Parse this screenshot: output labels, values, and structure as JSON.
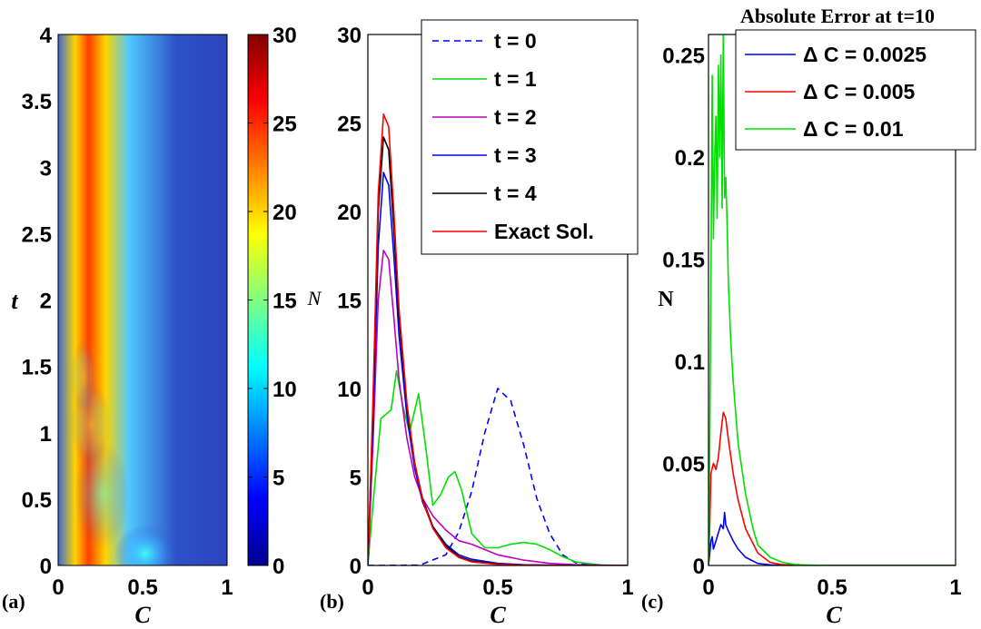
{
  "chart_data": [
    {
      "type": "heatmap",
      "panel_label": "(a)",
      "xlabel": "C",
      "ylabel": "t",
      "xlim": [
        0,
        1
      ],
      "ylim": [
        0,
        4
      ],
      "x_ticks": [
        "0",
        "0.5",
        "1"
      ],
      "y_ticks": [
        "0",
        "0.5",
        "1",
        "1.5",
        "2",
        "2.5",
        "3",
        "3.5",
        "4"
      ],
      "colorbar": {
        "range": [
          0,
          30
        ],
        "ticks": [
          "0",
          "5",
          "10",
          "15",
          "20",
          "25",
          "30"
        ]
      },
      "colors": {
        "low": "#2a3db3",
        "high": "#7f0000"
      }
    },
    {
      "type": "line",
      "panel_label": "(b)",
      "xlabel": "C",
      "ylabel": "N",
      "xlim": [
        0,
        1
      ],
      "ylim": [
        0,
        30
      ],
      "x_ticks": [
        "0",
        "0.5",
        "1"
      ],
      "y_ticks": [
        "0",
        "5",
        "10",
        "15",
        "20",
        "25",
        "30"
      ],
      "legend_position": "top-right",
      "series": [
        {
          "name": "t = 0",
          "color": "#0000ff",
          "dashed": true,
          "x": [
            0,
            0.2,
            0.3,
            0.35,
            0.4,
            0.45,
            0.5,
            0.55,
            0.6,
            0.65,
            0.7,
            0.75,
            0.8,
            0.9,
            1.0
          ],
          "y": [
            0,
            0.02,
            0.6,
            1.9,
            4.2,
            7.5,
            10.0,
            9.3,
            6.8,
            3.8,
            1.8,
            0.6,
            0.15,
            0.0,
            0.0
          ]
        },
        {
          "name": "t = 1",
          "color": "#00e000",
          "dashed": false,
          "x": [
            0,
            0.02,
            0.05,
            0.075,
            0.09,
            0.11,
            0.135,
            0.16,
            0.195,
            0.22,
            0.25,
            0.28,
            0.31,
            0.335,
            0.36,
            0.4,
            0.45,
            0.5,
            0.55,
            0.6,
            0.65,
            0.7,
            0.75,
            0.8,
            0.9,
            1.0
          ],
          "y": [
            0,
            3.5,
            8.3,
            8.6,
            8.8,
            11.0,
            9.0,
            7.5,
            9.7,
            7.0,
            3.4,
            4.0,
            5.0,
            5.3,
            4.3,
            1.8,
            1.0,
            1.0,
            1.2,
            1.3,
            1.2,
            0.9,
            0.5,
            0.2,
            0.02,
            0
          ]
        },
        {
          "name": "t = 2",
          "color": "#bf00bf",
          "dashed": false,
          "x": [
            0,
            0.02,
            0.04,
            0.06,
            0.08,
            0.1,
            0.12,
            0.15,
            0.18,
            0.21,
            0.25,
            0.3,
            0.35,
            0.4,
            0.45,
            0.5,
            0.6,
            0.7,
            0.8,
            1.0
          ],
          "y": [
            0,
            7.0,
            15.0,
            17.8,
            17.3,
            14.0,
            10.5,
            7.2,
            5.0,
            3.8,
            2.8,
            2.0,
            1.4,
            1.2,
            0.9,
            0.6,
            0.3,
            0.12,
            0.04,
            0
          ]
        },
        {
          "name": "t = 3",
          "color": "#0000ff",
          "dashed": false,
          "x": [
            0,
            0.02,
            0.04,
            0.06,
            0.08,
            0.1,
            0.12,
            0.15,
            0.18,
            0.21,
            0.25,
            0.3,
            0.35,
            0.4,
            0.5,
            0.6,
            0.8,
            1.0
          ],
          "y": [
            0,
            8.0,
            18.0,
            22.2,
            21.5,
            17.5,
            13.0,
            8.5,
            5.5,
            3.6,
            2.2,
            1.2,
            0.6,
            0.35,
            0.12,
            0.04,
            0,
            0
          ]
        },
        {
          "name": "t = 4",
          "color": "#000000",
          "dashed": false,
          "x": [
            0,
            0.02,
            0.04,
            0.06,
            0.08,
            0.1,
            0.12,
            0.15,
            0.18,
            0.21,
            0.25,
            0.3,
            0.35,
            0.4,
            0.5,
            0.6,
            0.8,
            1.0
          ],
          "y": [
            0,
            9.0,
            20.0,
            24.2,
            23.5,
            19.0,
            14.0,
            9.0,
            5.8,
            3.8,
            2.2,
            1.1,
            0.5,
            0.25,
            0.08,
            0.02,
            0,
            0
          ]
        },
        {
          "name": "Exact Sol.",
          "color": "#ff0000",
          "dashed": false,
          "x": [
            0,
            0.02,
            0.04,
            0.06,
            0.08,
            0.1,
            0.12,
            0.15,
            0.18,
            0.21,
            0.25,
            0.3,
            0.35,
            0.4,
            0.5,
            0.6,
            0.8,
            1.0
          ],
          "y": [
            0,
            9.5,
            21.0,
            25.5,
            24.8,
            20.0,
            14.5,
            9.2,
            5.8,
            3.7,
            2.1,
            1.0,
            0.45,
            0.2,
            0.06,
            0.02,
            0,
            0
          ]
        }
      ]
    },
    {
      "type": "line",
      "panel_label": "(c)",
      "title": "Absolute Error at t=10",
      "xlabel": "C",
      "ylabel": "N",
      "xlim": [
        0,
        1
      ],
      "ylim": [
        0,
        0.26
      ],
      "x_ticks": [
        "0",
        "0.5",
        "1"
      ],
      "y_ticks": [
        "0",
        "0.05",
        "0.1",
        "0.15",
        "0.2",
        "0.25"
      ],
      "legend_position": "top-right",
      "series": [
        {
          "name": "Δ C = 0.0025",
          "color": "#0000ff",
          "x": [
            0,
            0.005,
            0.01,
            0.015,
            0.02,
            0.03,
            0.04,
            0.05,
            0.06,
            0.065,
            0.07,
            0.08,
            0.1,
            0.12,
            0.15,
            0.2,
            0.25,
            0.3,
            0.4,
            1.0
          ],
          "y": [
            0,
            0.006,
            0.012,
            0.014,
            0.008,
            0.012,
            0.016,
            0.02,
            0.018,
            0.026,
            0.02,
            0.017,
            0.012,
            0.008,
            0.004,
            0.001,
            0.0003,
            0.0001,
            0,
            0
          ]
        },
        {
          "name": "Δ C = 0.005",
          "color": "#ff0000",
          "x": [
            0,
            0.005,
            0.01,
            0.02,
            0.03,
            0.04,
            0.05,
            0.06,
            0.07,
            0.08,
            0.1,
            0.12,
            0.15,
            0.2,
            0.25,
            0.3,
            0.4,
            1.0
          ],
          "y": [
            0,
            0.02,
            0.045,
            0.05,
            0.047,
            0.053,
            0.065,
            0.075,
            0.072,
            0.062,
            0.045,
            0.032,
            0.018,
            0.006,
            0.0015,
            0.0004,
            0,
            0
          ]
        },
        {
          "name": "Δ C = 0.01",
          "color": "#00e000",
          "x": [
            0,
            0.005,
            0.01,
            0.015,
            0.02,
            0.025,
            0.03,
            0.035,
            0.04,
            0.045,
            0.05,
            0.055,
            0.06,
            0.065,
            0.07,
            0.075,
            0.08,
            0.09,
            0.1,
            0.12,
            0.15,
            0.18,
            0.2,
            0.25,
            0.3,
            0.35,
            0.4,
            0.5,
            1.0
          ],
          "y": [
            0,
            0.06,
            0.14,
            0.24,
            0.16,
            0.2,
            0.22,
            0.17,
            0.245,
            0.2,
            0.25,
            0.175,
            0.26,
            0.18,
            0.19,
            0.17,
            0.14,
            0.11,
            0.09,
            0.06,
            0.035,
            0.018,
            0.01,
            0.004,
            0.0015,
            0.0005,
            0.0002,
            0,
            0
          ]
        }
      ]
    }
  ]
}
